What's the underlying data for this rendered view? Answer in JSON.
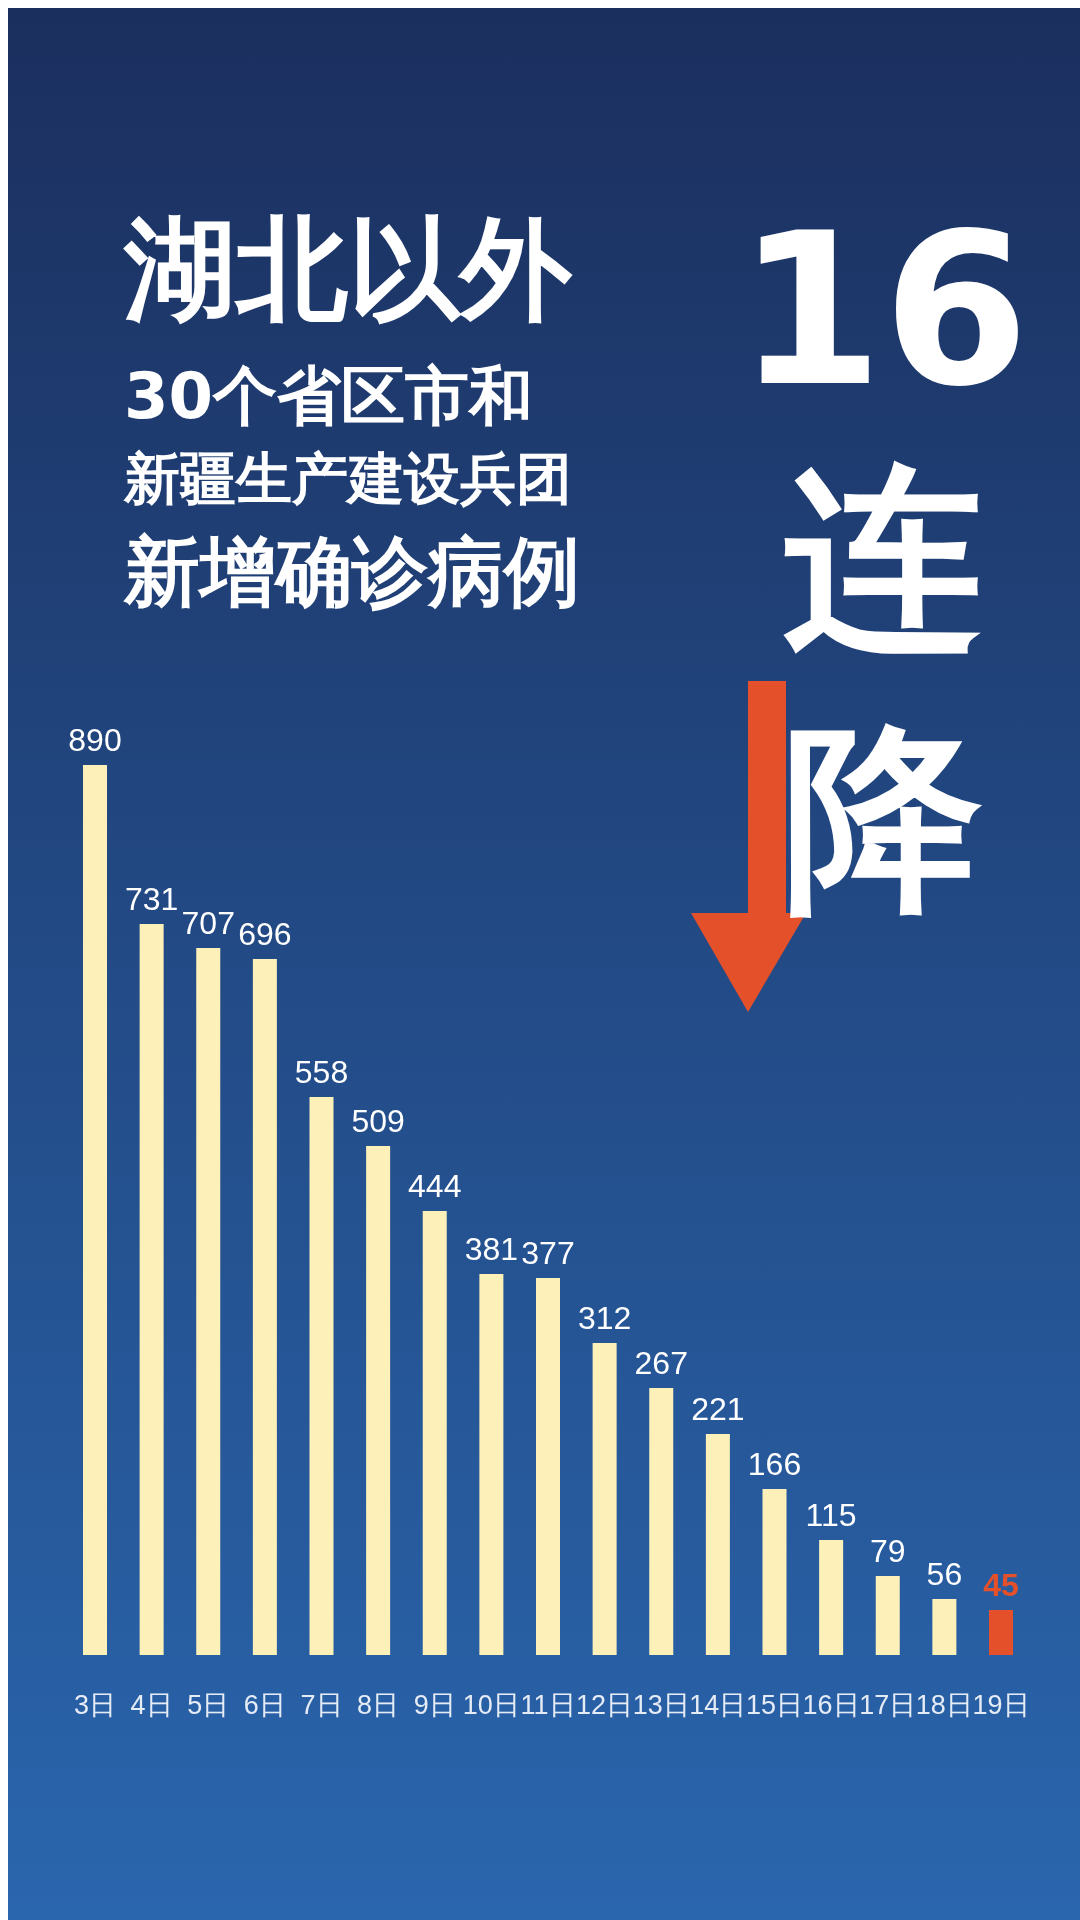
{
  "chart_data": {
    "type": "bar",
    "title": "湖北以外",
    "annotations": [
      "30个省区市和",
      "新疆生产建设兵团",
      "新增确诊病例",
      "16",
      "连",
      "降"
    ],
    "categories": [
      "3日",
      "4日",
      "5日",
      "6日",
      "7日",
      "8日",
      "9日",
      "10日",
      "11日",
      "12日",
      "13日",
      "14日",
      "15日",
      "16日",
      "17日",
      "18日",
      "19日"
    ],
    "values": [
      890,
      731,
      707,
      696,
      558,
      509,
      444,
      381,
      377,
      312,
      267,
      221,
      166,
      115,
      79,
      56,
      45
    ],
    "colors": [
      "#fdf1b9",
      "#fdf1b9",
      "#fdf1b9",
      "#fdf1b9",
      "#fdf1b9",
      "#fdf1b9",
      "#fdf1b9",
      "#fdf1b9",
      "#fdf1b9",
      "#fdf1b9",
      "#fdf1b9",
      "#fdf1b9",
      "#fdf1b9",
      "#fdf1b9",
      "#fdf1b9",
      "#fdf1b9",
      "#e4502a"
    ],
    "data_labels": true
  }
}
